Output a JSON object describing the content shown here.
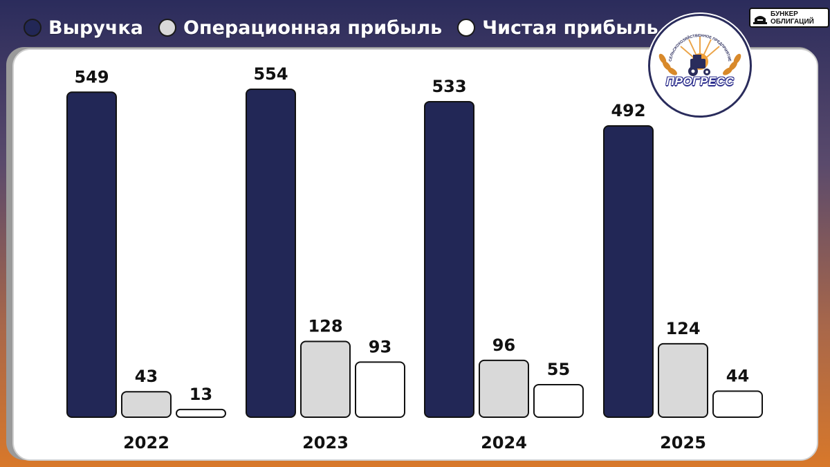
{
  "legend": {
    "items": [
      {
        "label": "Выручка",
        "color": "#222756"
      },
      {
        "label": "Операционная прибыль",
        "color": "#d9d9d9"
      },
      {
        "label": "Чистая прибыль",
        "color": "#ffffff"
      }
    ]
  },
  "brand": {
    "line1": "БУНКЕР",
    "line2": "ОБЛИГАЦИЙ",
    "icon": "bunker-icon"
  },
  "logo": {
    "name": "ПРОГРЕСС",
    "arc_text": "СЕЛЬСКОХОЗЯЙСТВЕННОЕ ПРЕДПРИЯТИЕ",
    "icon": "tractor-wheat-icon"
  },
  "chart_data": {
    "type": "bar",
    "categories": [
      "2022",
      "2023",
      "2024",
      "2025"
    ],
    "series": [
      {
        "name": "Выручка",
        "color": "#222756",
        "values": [
          549,
          554,
          533,
          492
        ]
      },
      {
        "name": "Операционная прибыль",
        "color": "#d9d9d9",
        "values": [
          43,
          128,
          96,
          124
        ]
      },
      {
        "name": "Чистая прибыль",
        "color": "#ffffff",
        "values": [
          13,
          93,
          55,
          44
        ]
      }
    ],
    "ylim": [
      0,
      554
    ],
    "grid": false,
    "legend_position": "top-left"
  }
}
